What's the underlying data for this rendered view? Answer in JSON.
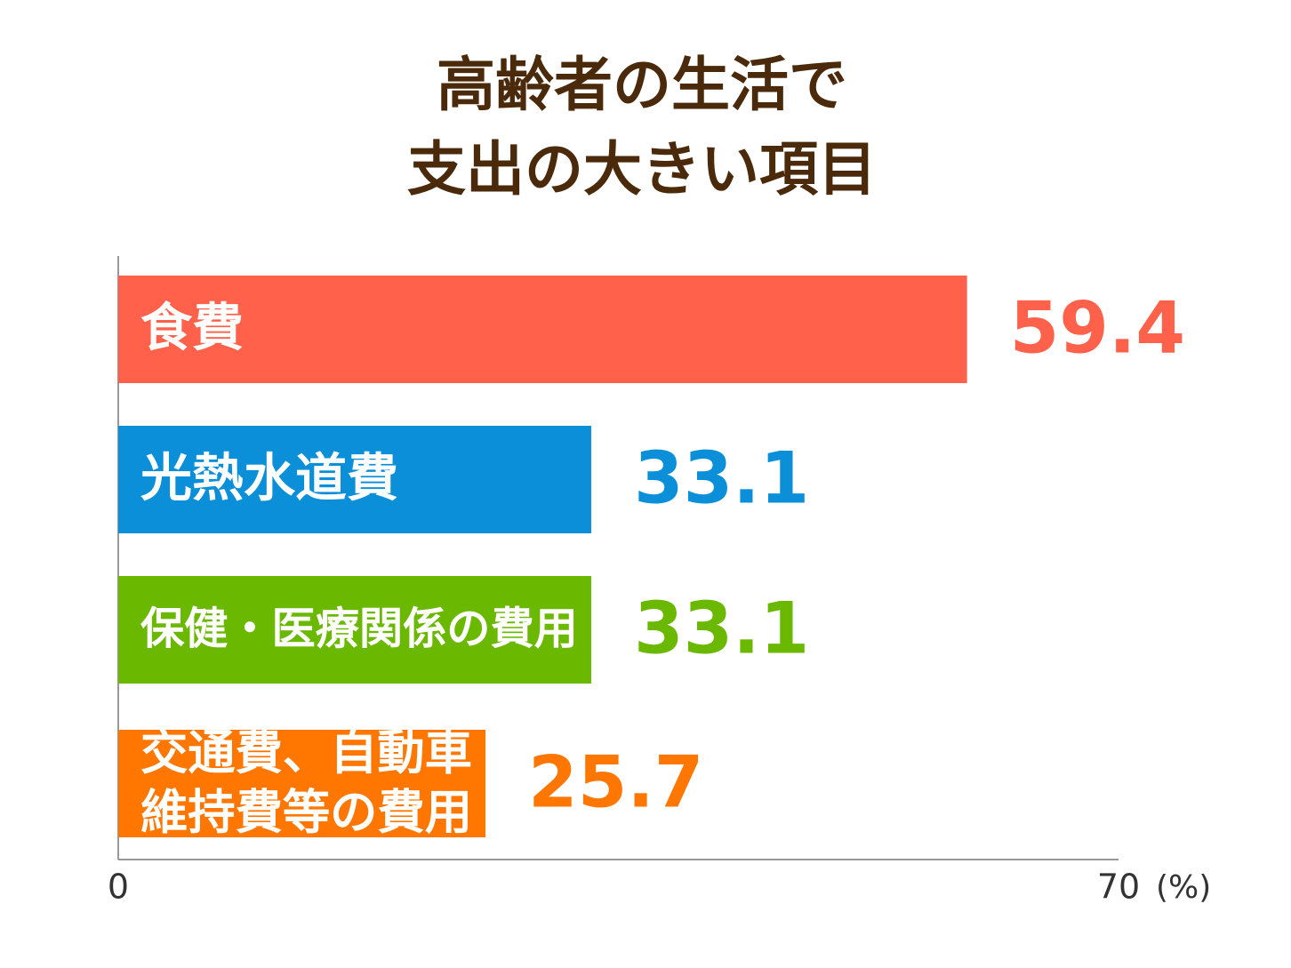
{
  "chart_data": {
    "type": "bar",
    "orientation": "horizontal",
    "title": [
      "高齢者の生活で",
      "支出の大きい項目"
    ],
    "categories": [
      "食費",
      "光熱水道費",
      "保健・医療関係の費用",
      "交通費、自動車\n維持費等の費用"
    ],
    "values": [
      59.4,
      33.1,
      33.1,
      25.7
    ],
    "colors": [
      "#ff614a",
      "#0a8fd8",
      "#6ab800",
      "#ff7700"
    ],
    "xlim": [
      0,
      70
    ],
    "xticks": [
      0,
      70
    ],
    "x_unit": "(%)"
  }
}
